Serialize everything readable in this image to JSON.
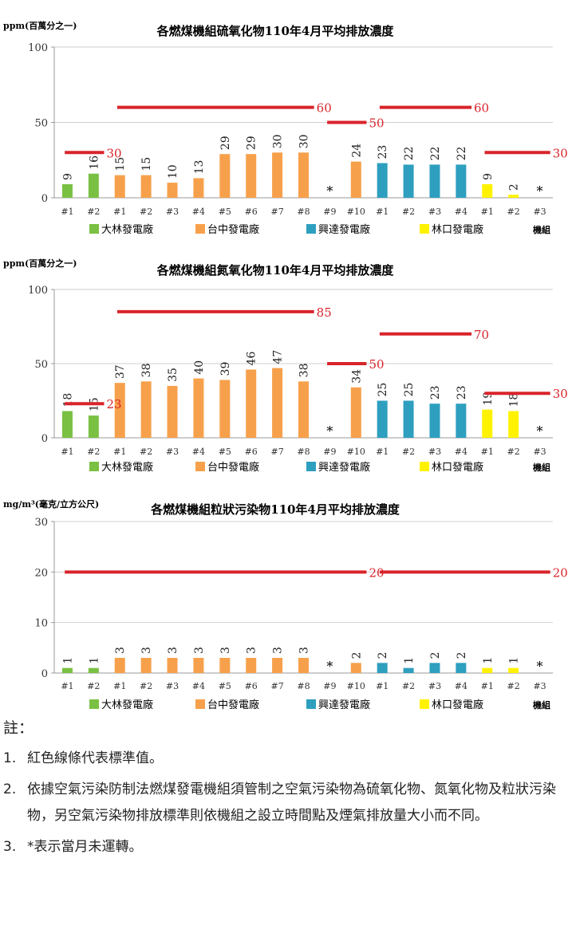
{
  "colors": {
    "dalin": "#7AC143",
    "taichung": "#F7A04B",
    "hsinta": "#2E9FBF",
    "linkou": "#FFF200",
    "standard_line": "#D9242B",
    "not_operating": "#000000"
  },
  "chart_data": [
    {
      "type": "bar",
      "title": "各燃煤機組硫氧化物110年4月平均排放濃度",
      "ylabel": "ppm(百萬分之一)",
      "xlabel": "機組",
      "ylim": [
        0,
        100
      ],
      "yticks": [
        "0",
        "50",
        "100"
      ],
      "grid": true,
      "categories": [
        "#1",
        "#2",
        "#1",
        "#2",
        "#3",
        "#4",
        "#5",
        "#6",
        "#7",
        "#8",
        "#9",
        "#10",
        "#1",
        "#2",
        "#3",
        "#4",
        "#1",
        "#2",
        "#3"
      ],
      "values": [
        9,
        16,
        15,
        15,
        10,
        13,
        29,
        29,
        30,
        30,
        null,
        24,
        23,
        22,
        22,
        22,
        9,
        2,
        null
      ],
      "value_labels": [
        "9",
        "16",
        "15",
        "15",
        "10",
        "13",
        "29",
        "29",
        "30",
        "30",
        "*",
        "24",
        "23",
        "22",
        "22",
        "22",
        "9",
        "2",
        "*"
      ],
      "bar_groups": [
        "dalin",
        "dalin",
        "taichung",
        "taichung",
        "taichung",
        "taichung",
        "taichung",
        "taichung",
        "taichung",
        "taichung",
        "taichung",
        "taichung",
        "hsinta",
        "hsinta",
        "hsinta",
        "hsinta",
        "linkou",
        "linkou",
        "linkou"
      ],
      "legend": [
        "大林發電廠",
        "台中發電廠",
        "興達發電廠",
        "林口發電廠"
      ],
      "legend_colors": [
        "dalin",
        "taichung",
        "hsinta",
        "linkou"
      ],
      "standards": [
        {
          "from_index": 0,
          "to_index": 1,
          "value": 30,
          "label": "30"
        },
        {
          "from_index": 2,
          "to_index": 9,
          "value": 60,
          "label": "60"
        },
        {
          "from_index": 10,
          "to_index": 11,
          "value": 50,
          "label": "50"
        },
        {
          "from_index": 12,
          "to_index": 15,
          "value": 60,
          "label": "60"
        },
        {
          "from_index": 16,
          "to_index": 18,
          "value": 30,
          "label": "30"
        }
      ]
    },
    {
      "type": "bar",
      "title": "各燃煤機組氮氧化物110年4月平均排放濃度",
      "ylabel": "ppm(百萬分之一)",
      "xlabel": "機組",
      "ylim": [
        0,
        100
      ],
      "yticks": [
        "0",
        "50",
        "100"
      ],
      "grid": true,
      "categories": [
        "#1",
        "#2",
        "#1",
        "#2",
        "#3",
        "#4",
        "#5",
        "#6",
        "#7",
        "#8",
        "#9",
        "#10",
        "#1",
        "#2",
        "#3",
        "#4",
        "#1",
        "#2",
        "#3"
      ],
      "values": [
        18,
        15,
        37,
        38,
        35,
        40,
        39,
        46,
        47,
        38,
        null,
        34,
        25,
        25,
        23,
        23,
        19,
        18,
        null
      ],
      "value_labels": [
        "18",
        "15",
        "37",
        "38",
        "35",
        "40",
        "39",
        "46",
        "47",
        "38",
        "*",
        "34",
        "25",
        "25",
        "23",
        "23",
        "19",
        "18",
        "*"
      ],
      "bar_groups": [
        "dalin",
        "dalin",
        "taichung",
        "taichung",
        "taichung",
        "taichung",
        "taichung",
        "taichung",
        "taichung",
        "taichung",
        "taichung",
        "taichung",
        "hsinta",
        "hsinta",
        "hsinta",
        "hsinta",
        "linkou",
        "linkou",
        "linkou"
      ],
      "legend": [
        "大林發電廠",
        "台中發電廠",
        "興達發電廠",
        "林口發電廠"
      ],
      "legend_colors": [
        "dalin",
        "taichung",
        "hsinta",
        "linkou"
      ],
      "standards": [
        {
          "from_index": 0,
          "to_index": 1,
          "value": 23,
          "label": "23"
        },
        {
          "from_index": 2,
          "to_index": 9,
          "value": 85,
          "label": "85"
        },
        {
          "from_index": 10,
          "to_index": 11,
          "value": 50,
          "label": "50"
        },
        {
          "from_index": 12,
          "to_index": 15,
          "value": 70,
          "label": "70"
        },
        {
          "from_index": 16,
          "to_index": 18,
          "value": 30,
          "label": "30"
        }
      ]
    },
    {
      "type": "bar",
      "title": "各燃煤機組粒狀污染物110年4月平均排放濃度",
      "ylabel": "mg/m³(毫克/立方公尺)",
      "xlabel": "機組",
      "ylim": [
        0,
        30
      ],
      "yticks": [
        "0",
        "10",
        "20",
        "30"
      ],
      "grid": true,
      "categories": [
        "#1",
        "#2",
        "#1",
        "#2",
        "#3",
        "#4",
        "#5",
        "#6",
        "#7",
        "#8",
        "#9",
        "#10",
        "#1",
        "#2",
        "#3",
        "#4",
        "#1",
        "#2",
        "#3"
      ],
      "values": [
        1,
        1,
        3,
        3,
        3,
        3,
        3,
        3,
        3,
        3,
        null,
        2,
        2,
        1,
        2,
        2,
        1,
        1,
        null
      ],
      "value_labels": [
        "1",
        "1",
        "3",
        "3",
        "3",
        "3",
        "3",
        "3",
        "3",
        "3",
        "*",
        "2",
        "2",
        "1",
        "2",
        "2",
        "1",
        "1",
        "*"
      ],
      "bar_groups": [
        "dalin",
        "dalin",
        "taichung",
        "taichung",
        "taichung",
        "taichung",
        "taichung",
        "taichung",
        "taichung",
        "taichung",
        "taichung",
        "taichung",
        "hsinta",
        "hsinta",
        "hsinta",
        "hsinta",
        "linkou",
        "linkou",
        "linkou"
      ],
      "legend": [
        "大林發電廠",
        "台中發電廠",
        "興達發電廠",
        "林口發電廠"
      ],
      "legend_colors": [
        "dalin",
        "taichung",
        "hsinta",
        "linkou"
      ],
      "standards": [
        {
          "from_index": 0,
          "to_index": 11,
          "value": 20,
          "label": "20"
        },
        {
          "from_index": 12,
          "to_index": 18,
          "value": 20,
          "label": "20"
        }
      ]
    }
  ],
  "notes": {
    "heading": "註：",
    "items": [
      {
        "num": "1.",
        "text": "紅色線條代表標準值。"
      },
      {
        "num": "2.",
        "text": "依據空氣污染防制法燃煤發電機組須管制之空氣污染物為硫氧化物、氮氧化物及粒狀污染物，另空氣污染物排放標準則依機組之設立時間點及煙氣排放量大小而不同。"
      },
      {
        "num": "3.",
        "text": "*表示當月未運轉。"
      }
    ]
  }
}
